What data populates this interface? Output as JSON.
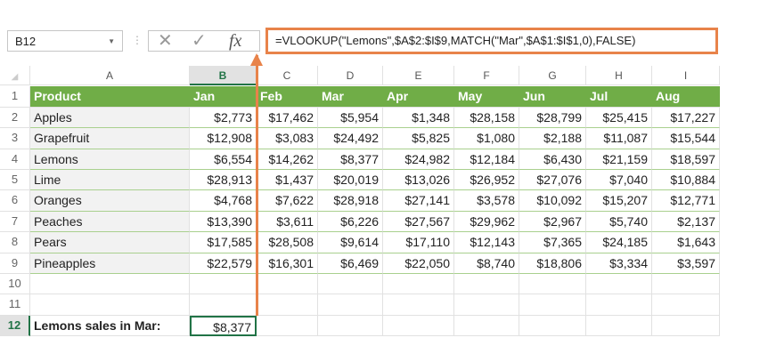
{
  "name_box": "B12",
  "formula": "=VLOOKUP(\"Lemons\",$A$2:$I$9,MATCH(\"Mar\",$A$1:$I$1,0),FALSE)",
  "columns": [
    "A",
    "B",
    "C",
    "D",
    "E",
    "F",
    "G",
    "H",
    "I"
  ],
  "header_row": [
    "Product",
    "Jan",
    "Feb",
    "Mar",
    "Apr",
    "May",
    "Jun",
    "Jul",
    "Aug"
  ],
  "rows": [
    [
      "Apples",
      "$2,773",
      "$17,462",
      "$5,954",
      "$1,348",
      "$28,158",
      "$28,799",
      "$25,415",
      "$17,227"
    ],
    [
      "Grapefruit",
      "$12,908",
      "$3,083",
      "$24,492",
      "$5,825",
      "$1,080",
      "$2,188",
      "$11,087",
      "$15,544"
    ],
    [
      "Lemons",
      "$6,554",
      "$14,262",
      "$8,377",
      "$24,982",
      "$12,184",
      "$6,430",
      "$21,159",
      "$18,597"
    ],
    [
      "Lime",
      "$28,913",
      "$1,437",
      "$20,019",
      "$13,026",
      "$26,952",
      "$27,076",
      "$7,040",
      "$10,884"
    ],
    [
      "Oranges",
      "$4,768",
      "$7,622",
      "$28,918",
      "$27,141",
      "$3,578",
      "$10,092",
      "$15,207",
      "$12,771"
    ],
    [
      "Peaches",
      "$13,390",
      "$3,611",
      "$6,226",
      "$27,567",
      "$29,962",
      "$2,967",
      "$5,740",
      "$2,137"
    ],
    [
      "Pears",
      "$17,585",
      "$28,508",
      "$9,614",
      "$17,110",
      "$12,143",
      "$7,365",
      "$24,185",
      "$1,643"
    ],
    [
      "Pineapples",
      "$22,579",
      "$16,301",
      "$6,469",
      "$22,050",
      "$8,740",
      "$18,806",
      "$3,334",
      "$3,597"
    ]
  ],
  "result": {
    "label": "Lemons sales in Mar:",
    "value": "$8,377"
  },
  "colors": {
    "header_green": "#70ad47",
    "accent_orange": "#e8834a",
    "excel_green": "#217346"
  }
}
